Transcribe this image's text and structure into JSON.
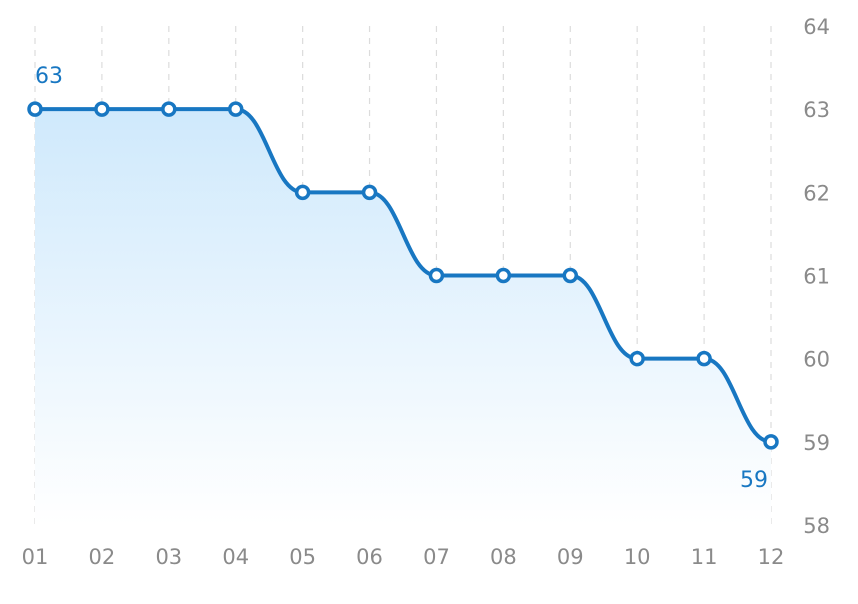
{
  "chart_data": {
    "type": "area",
    "categories": [
      "01",
      "02",
      "03",
      "04",
      "05",
      "06",
      "07",
      "08",
      "09",
      "10",
      "11",
      "12"
    ],
    "series": [
      {
        "values": [
          63,
          63,
          63,
          63,
          62,
          62,
          61,
          61,
          61,
          60,
          60,
          59
        ]
      }
    ],
    "ylim": [
      58,
      64
    ],
    "yticks": [
      "58",
      "59",
      "60",
      "61",
      "62",
      "63",
      "64"
    ],
    "y_axis_side": "right",
    "grid": "vertical dashed",
    "annotations": [
      {
        "category": "01",
        "text": "63"
      },
      {
        "category": "12",
        "text": "59"
      }
    ],
    "colors": {
      "line": "#1877c2",
      "fill_top": "#cfe9fc",
      "fill_bottom": "#ffffff",
      "tick_text": "#8a8a8a",
      "grid": "#dcdcdc",
      "label_text": "#1877c2"
    }
  }
}
